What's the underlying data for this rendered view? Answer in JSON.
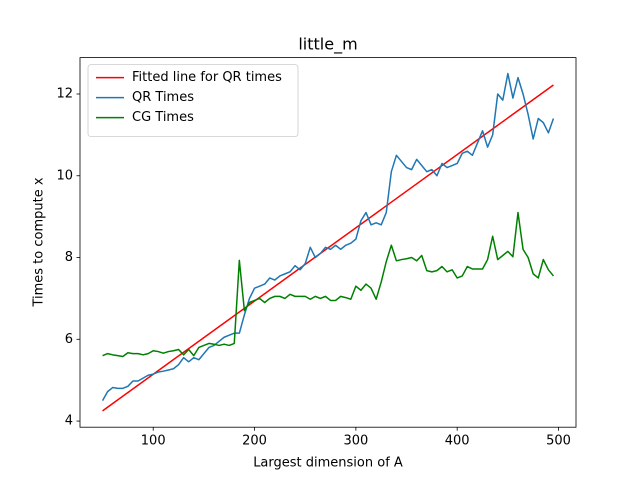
{
  "chart_data": {
    "type": "line",
    "title": "little_m",
    "x_label": "Largest dimension of A",
    "y_label": "Times to compute x",
    "x": [
      50,
      55,
      60,
      65,
      70,
      75,
      80,
      85,
      90,
      95,
      100,
      105,
      110,
      115,
      120,
      125,
      130,
      135,
      140,
      145,
      150,
      155,
      160,
      165,
      170,
      175,
      180,
      185,
      190,
      195,
      200,
      205,
      210,
      215,
      220,
      225,
      230,
      235,
      240,
      245,
      250,
      255,
      260,
      265,
      270,
      275,
      280,
      285,
      290,
      295,
      300,
      305,
      310,
      315,
      320,
      325,
      330,
      335,
      340,
      345,
      350,
      355,
      360,
      365,
      370,
      375,
      380,
      385,
      390,
      395,
      400,
      405,
      410,
      415,
      420,
      425,
      430,
      435,
      440,
      445,
      450,
      455,
      460,
      465,
      470,
      475,
      480,
      485,
      490,
      495
    ],
    "series": [
      {
        "name": "Fitted line for QR times",
        "color": "#ff0000",
        "x": [
          50,
          495
        ],
        "values": [
          4.25,
          12.22
        ]
      },
      {
        "name": "QR Times",
        "color": "#1f77b4",
        "values": [
          4.5,
          4.72,
          4.82,
          4.8,
          4.8,
          4.85,
          4.98,
          4.98,
          5.05,
          5.12,
          5.15,
          5.2,
          5.22,
          5.25,
          5.28,
          5.38,
          5.55,
          5.45,
          5.55,
          5.5,
          5.65,
          5.8,
          5.85,
          5.95,
          6.05,
          6.1,
          6.15,
          6.15,
          6.6,
          7.0,
          7.25,
          7.3,
          7.35,
          7.5,
          7.45,
          7.55,
          7.6,
          7.65,
          7.8,
          7.7,
          7.85,
          8.25,
          8.0,
          8.1,
          8.25,
          8.2,
          8.3,
          8.2,
          8.3,
          8.35,
          8.45,
          8.9,
          9.1,
          8.8,
          8.85,
          8.8,
          9.1,
          10.1,
          10.5,
          10.35,
          10.2,
          10.15,
          10.4,
          10.25,
          10.1,
          10.15,
          10.0,
          10.3,
          10.2,
          10.25,
          10.3,
          10.55,
          10.6,
          10.5,
          10.8,
          11.1,
          10.7,
          11.0,
          12.0,
          11.85,
          12.5,
          11.9,
          12.4,
          12.0,
          11.5,
          10.9,
          11.4,
          11.3,
          11.05,
          11.4
        ]
      },
      {
        "name": "CG Times",
        "color": "#008000",
        "values": [
          5.6,
          5.65,
          5.62,
          5.6,
          5.58,
          5.67,
          5.65,
          5.65,
          5.62,
          5.65,
          5.72,
          5.7,
          5.66,
          5.7,
          5.72,
          5.75,
          5.62,
          5.75,
          5.6,
          5.8,
          5.85,
          5.9,
          5.88,
          5.85,
          5.88,
          5.85,
          5.9,
          7.93,
          6.7,
          6.9,
          6.95,
          7.0,
          6.9,
          7.0,
          7.05,
          7.05,
          7.0,
          7.1,
          7.05,
          7.05,
          7.05,
          6.98,
          7.05,
          7.0,
          7.05,
          6.95,
          6.95,
          7.05,
          7.02,
          6.98,
          7.3,
          7.2,
          7.35,
          7.25,
          6.98,
          7.4,
          7.9,
          8.3,
          7.92,
          7.95,
          7.97,
          8.0,
          7.92,
          8.05,
          7.68,
          7.65,
          7.68,
          7.78,
          7.65,
          7.7,
          7.5,
          7.55,
          7.78,
          7.72,
          7.72,
          7.72,
          7.95,
          8.52,
          7.95,
          8.05,
          8.15,
          8.02,
          9.1,
          8.2,
          8.0,
          7.6,
          7.5,
          7.95,
          7.7,
          7.55
        ]
      }
    ],
    "xlim": [
      27.75,
      517.25
    ],
    "ylim": [
      3.85,
      12.89
    ],
    "xticks": [
      100,
      200,
      300,
      400,
      500
    ],
    "yticks": [
      4,
      6,
      8,
      10,
      12
    ],
    "legend": "upper left"
  }
}
